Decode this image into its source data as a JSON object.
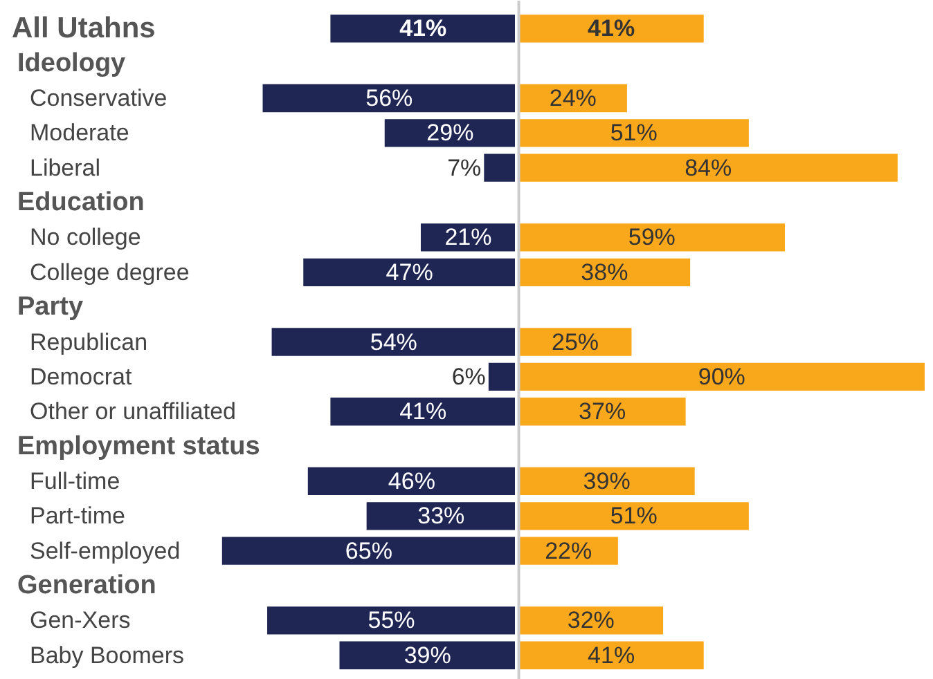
{
  "chart_data": [
    {
      "type": "bar",
      "orientation": "horizontal",
      "categories": [
        "All Utahns",
        "Ideology",
        "Conservative",
        "Moderate",
        "Liberal",
        "Education",
        "No college",
        "College degree",
        "Party",
        "Republican",
        "Democrat",
        "Other or unaffiliated",
        "Employment status",
        "Full-time",
        "Part-time",
        "Self-employed",
        "Generation",
        "Gen-Xers",
        "Baby Boomers"
      ],
      "series": [
        {
          "color": "#1f2654",
          "values": [
            41,
            null,
            56,
            29,
            7,
            null,
            21,
            47,
            null,
            54,
            6,
            41,
            null,
            46,
            33,
            65,
            null,
            55,
            39
          ],
          "value_labels": [
            "41%",
            null,
            "56%",
            "29%",
            "7%",
            null,
            "21%",
            "47%",
            null,
            "54%",
            "6%",
            "41%",
            null,
            "46%",
            "33%",
            "65%",
            null,
            "55%",
            "39%"
          ]
        }
      ],
      "xlim": [
        114,
        0
      ],
      "grid": false,
      "tick_labels": "y"
    },
    {
      "type": "bar",
      "orientation": "horizontal",
      "categories": [
        null,
        null,
        null,
        null,
        null,
        null,
        null,
        null,
        null,
        null,
        null,
        null,
        null,
        null,
        null,
        null,
        null,
        null,
        null
      ],
      "series": [
        {
          "color": "#f9a81c",
          "values": [
            41,
            null,
            24,
            51,
            84,
            null,
            59,
            38,
            null,
            25,
            90,
            37,
            null,
            39,
            51,
            22,
            null,
            32,
            41
          ],
          "value_labels": [
            "41%",
            null,
            "24%",
            "51%",
            "84%",
            null,
            "59%",
            "38%",
            null,
            "25%",
            "90%",
            "37%",
            null,
            "39%",
            "51%",
            "22%",
            null,
            "32%",
            "41%"
          ]
        }
      ],
      "xlim": [
        -0.7,
        92
      ],
      "ref_lines": [
        {
          "axis": "x",
          "value": 0,
          "color": "#cccccc"
        }
      ],
      "grid": false,
      "tick_labels": false
    }
  ]
}
